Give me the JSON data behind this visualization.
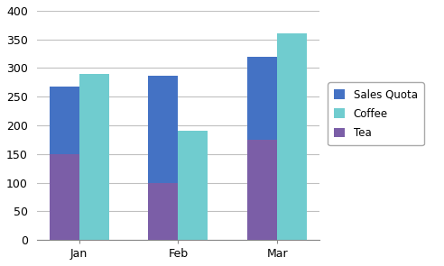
{
  "categories": [
    "Jan",
    "Feb",
    "Mar"
  ],
  "series": {
    "Sales Quota": [
      268,
      287,
      320
    ],
    "Coffee": [
      290,
      190,
      360
    ],
    "Tea": [
      150,
      100,
      175
    ]
  },
  "colors": {
    "Sales Quota": "#4472C4",
    "Coffee": "#70CCCF",
    "Tea": "#7B5EA7"
  },
  "ylim": [
    0,
    400
  ],
  "yticks": [
    0,
    50,
    100,
    150,
    200,
    250,
    300,
    350,
    400
  ],
  "bar_width": 0.3,
  "legend_labels": [
    "Sales Quota",
    "Coffee",
    "Tea"
  ],
  "background_color": "#FFFFFF",
  "plot_bg_color": "#FFFFFF",
  "grid_color": "#C0C0C0",
  "figsize": [
    4.92,
    2.95
  ],
  "dpi": 100
}
